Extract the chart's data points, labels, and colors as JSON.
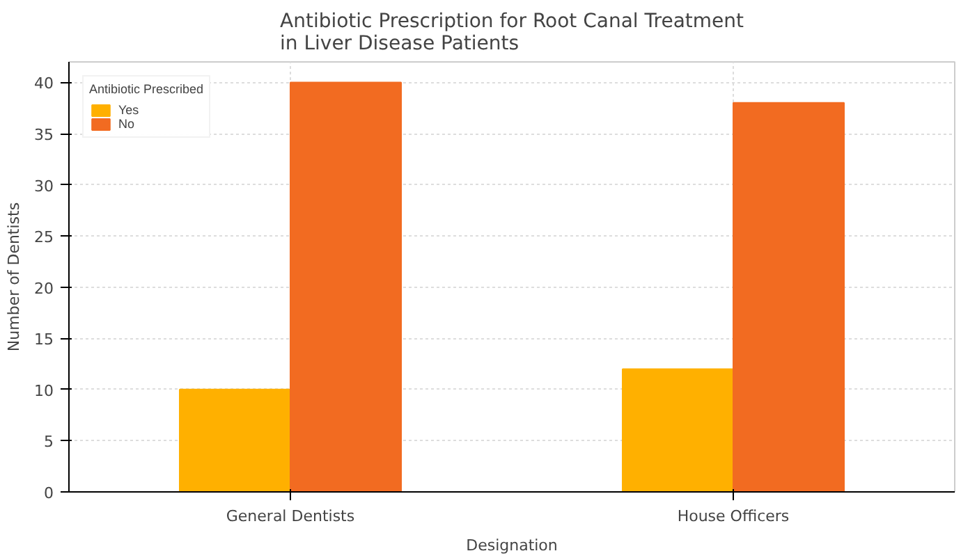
{
  "chart_data": {
    "type": "bar",
    "title": "Antibiotic Prescription for Root Canal Treatment\nin Liver Disease Patients",
    "xlabel": "Designation",
    "ylabel": "Number of Dentists",
    "legend_title": "Antibiotic Prescribed",
    "categories": [
      "General Dentists",
      "House Officers"
    ],
    "series": [
      {
        "name": "Yes",
        "color": "#ffb000",
        "values": [
          10,
          12
        ]
      },
      {
        "name": "No",
        "color": "#f26b21",
        "values": [
          40,
          38
        ]
      }
    ],
    "ylim": [
      0,
      42
    ],
    "yticks": [
      0,
      5,
      10,
      15,
      20,
      25,
      30,
      35,
      40
    ],
    "grid": true,
    "legend": "top left"
  }
}
